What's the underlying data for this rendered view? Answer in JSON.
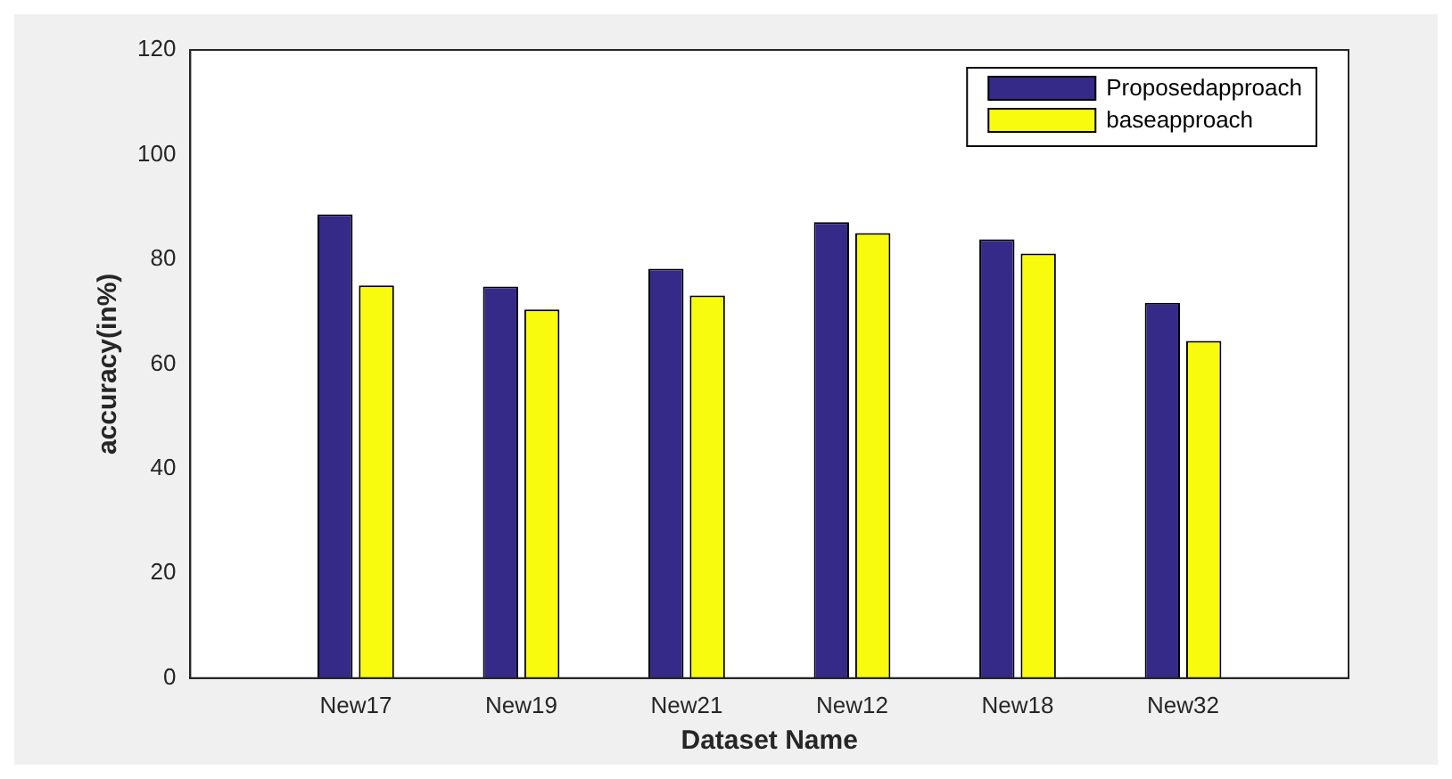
{
  "chart_data": {
    "type": "bar",
    "xlabel": "Dataset Name",
    "ylabel": "accuracy(in%)",
    "categories": [
      "New17",
      "New19",
      "New21",
      "New12",
      "New18",
      "New32"
    ],
    "series": [
      {
        "name": "Proposedapproach",
        "color": "#352a87",
        "values": [
          88.6,
          74.8,
          78.2,
          87.1,
          83.8,
          71.7
        ]
      },
      {
        "name": "baseapproach",
        "color": "#f9fb0e",
        "values": [
          75.0,
          70.4,
          73.1,
          85.0,
          81.1,
          64.4
        ]
      }
    ],
    "ylim": [
      0,
      120
    ],
    "yticks": [
      0,
      20,
      40,
      60,
      80,
      100,
      120
    ],
    "grid": false,
    "legend": "top right"
  }
}
